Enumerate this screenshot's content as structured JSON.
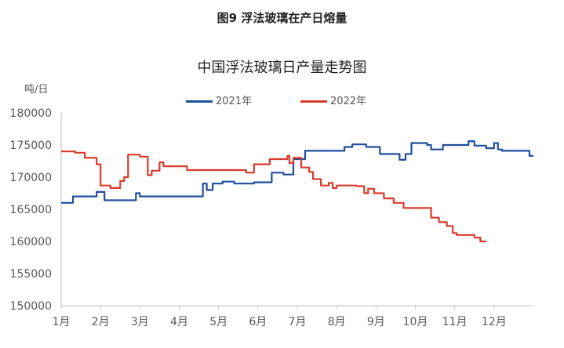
{
  "figure_title": "图9  浮法玻璃在产日熔量",
  "chart_data": {
    "type": "line",
    "title": "中国浮法玻璃日产量走势图",
    "ylabel": "吨/日",
    "xlabel": "",
    "x_ticks": [
      "1月",
      "2月",
      "3月",
      "4月",
      "5月",
      "6月",
      "7月",
      "8月",
      "9月",
      "10月",
      "11月",
      "12月"
    ],
    "y_ticks": [
      "180000",
      "175000",
      "170000",
      "165000",
      "160000",
      "155000",
      "150000"
    ],
    "ylim": [
      150000,
      180000
    ],
    "xlim": [
      1,
      13
    ],
    "grid": false,
    "legend": "top-center",
    "series": [
      {
        "name": "2021年",
        "color": "#1f4e9c",
        "x": [
          1.0,
          1.3,
          1.3,
          1.9,
          1.9,
          2.1,
          2.1,
          2.9,
          2.9,
          3.0,
          3.0,
          4.6,
          4.6,
          4.7,
          4.7,
          4.85,
          4.85,
          5.1,
          5.1,
          5.4,
          5.4,
          5.9,
          5.9,
          6.35,
          6.35,
          6.65,
          6.65,
          6.9,
          6.9,
          7.2,
          7.2,
          8.2,
          8.2,
          8.4,
          8.4,
          8.75,
          8.75,
          9.1,
          9.1,
          9.6,
          9.6,
          9.75,
          9.75,
          9.9,
          9.9,
          10.3,
          10.3,
          10.4,
          10.4,
          10.7,
          10.7,
          11.35,
          11.35,
          11.5,
          11.5,
          11.8,
          11.8,
          12.0,
          12.0,
          12.1,
          12.1,
          12.2,
          12.2,
          12.9,
          12.9,
          13.0
        ],
        "y": [
          166000,
          166000,
          167000,
          167000,
          167700,
          167700,
          166400,
          166400,
          167500,
          167500,
          167000,
          167000,
          169000,
          169000,
          168000,
          168000,
          169000,
          169000,
          169300,
          169300,
          169000,
          169000,
          169200,
          169200,
          170700,
          170700,
          170400,
          170400,
          172800,
          172800,
          174100,
          174100,
          174700,
          174700,
          175100,
          175100,
          174700,
          174700,
          173600,
          173600,
          172700,
          172700,
          173600,
          173600,
          175300,
          175300,
          175000,
          175000,
          174300,
          174300,
          175000,
          175000,
          175600,
          175600,
          174900,
          174900,
          174500,
          174500,
          175300,
          175300,
          174300,
          174300,
          174100,
          174100,
          173300,
          173300
        ]
      },
      {
        "name": "2022年",
        "color": "#d93a2b",
        "x": [
          1.0,
          1.35,
          1.35,
          1.6,
          1.6,
          1.9,
          1.9,
          2.0,
          2.0,
          2.25,
          2.25,
          2.5,
          2.5,
          2.6,
          2.6,
          2.7,
          2.7,
          3.0,
          3.0,
          3.2,
          3.2,
          3.3,
          3.3,
          3.5,
          3.5,
          3.6,
          3.6,
          4.2,
          4.2,
          5.7,
          5.7,
          5.9,
          5.9,
          6.3,
          6.3,
          6.75,
          6.75,
          6.8,
          6.8,
          6.9,
          6.9,
          7.1,
          7.1,
          7.3,
          7.3,
          7.4,
          7.4,
          7.6,
          7.6,
          7.8,
          7.8,
          7.9,
          7.9,
          8.0,
          8.0,
          8.5,
          8.5,
          8.7,
          8.7,
          8.8,
          8.8,
          8.95,
          8.95,
          9.2,
          9.2,
          9.45,
          9.45,
          9.7,
          9.7,
          9.85,
          9.85,
          10.4,
          10.4,
          10.6,
          10.6,
          10.8,
          10.8,
          10.95,
          10.95,
          11.05,
          11.05,
          11.2,
          11.2,
          11.5,
          11.5,
          11.65,
          11.65,
          11.8
        ],
        "y": [
          174000,
          174000,
          173800,
          173800,
          173000,
          173000,
          172000,
          172000,
          168700,
          168700,
          168300,
          168300,
          169400,
          169400,
          170000,
          170000,
          173500,
          173500,
          173200,
          173200,
          170300,
          170300,
          171000,
          171000,
          172300,
          172300,
          171700,
          171700,
          171100,
          171100,
          170700,
          170700,
          172000,
          172000,
          172800,
          172800,
          173300,
          173300,
          172200,
          172200,
          173000,
          173000,
          171500,
          171500,
          170800,
          170800,
          169700,
          169700,
          168700,
          168700,
          169100,
          169100,
          168300,
          168300,
          168700,
          168700,
          168600,
          168600,
          167500,
          167500,
          168200,
          168200,
          167500,
          167500,
          166700,
          166700,
          166000,
          166000,
          165200,
          165200,
          165200,
          165200,
          163700,
          163700,
          163000,
          163000,
          162400,
          162400,
          161300,
          161300,
          161000,
          161000,
          161000,
          161000,
          160600,
          160600,
          160000,
          160000
        ]
      }
    ]
  }
}
